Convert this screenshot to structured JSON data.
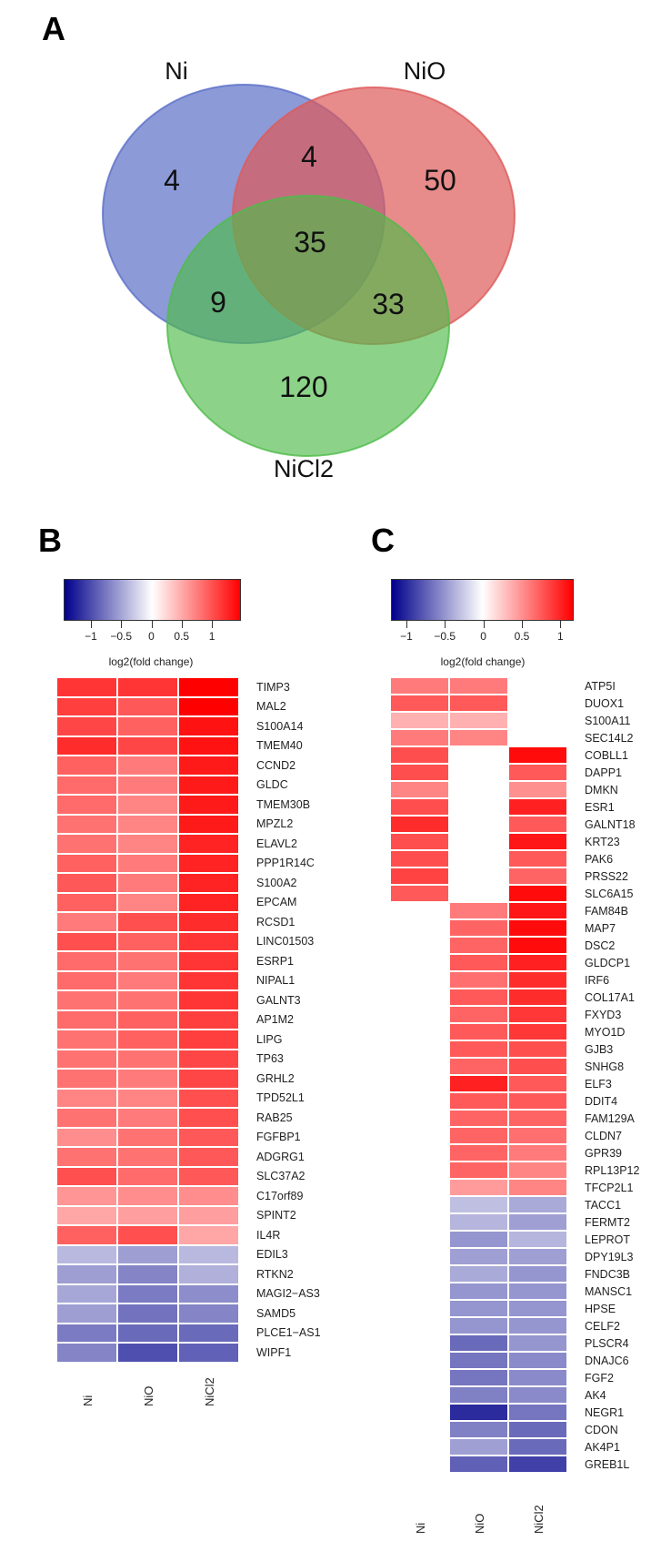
{
  "panels": {
    "A": {
      "letter": "A"
    },
    "B": {
      "letter": "B"
    },
    "C": {
      "letter": "C"
    }
  },
  "chart_data": [
    {
      "type": "venn",
      "panel": "A",
      "sets": [
        "Ni",
        "NiO",
        "NiCl2"
      ],
      "colors": {
        "Ni": "#5b6fc8",
        "NiO": "#dd5a5a",
        "NiCl2": "#4fbc4a"
      },
      "regions": {
        "Ni_only": 4,
        "NiO_only": 50,
        "NiCl2_only": 120,
        "Ni_NiO": 4,
        "Ni_NiCl2": 9,
        "NiO_NiCl2": 33,
        "Ni_NiO_NiCl2": 35
      }
    },
    {
      "type": "heatmap",
      "panel": "B",
      "colorbar": {
        "title": "log2(fold change)",
        "ticks": [
          "−1",
          "−0.5",
          "0",
          "0.5",
          "1"
        ],
        "range": [
          -1.45,
          1.45
        ],
        "low_color": "#00008b",
        "mid_color": "#ffffff",
        "high_color": "#ff0000"
      },
      "columns": [
        "Ni",
        "NiO",
        "NiCl2"
      ],
      "rows": [
        "TIMP3",
        "MAL2",
        "S100A14",
        "TMEM40",
        "CCND2",
        "GLDC",
        "TMEM30B",
        "MPZL2",
        "ELAVL2",
        "PPP1R14C",
        "S100A2",
        "EPCAM",
        "RCSD1",
        "LINC01503",
        "ESRP1",
        "NIPAL1",
        "GALNT3",
        "AP1M2",
        "LIPG",
        "TP63",
        "GRHL2",
        "TPD52L1",
        "RAB25",
        "FGFBP1",
        "ADGRG1",
        "SLC37A2",
        "C17orf89",
        "SPINT2",
        "IL4R",
        "EDIL3",
        "RTKN2",
        "MAGI2−AS3",
        "SAMD5",
        "PLCE1−AS1",
        "WIPF1"
      ],
      "values": [
        [
          1.15,
          1.15,
          1.45
        ],
        [
          1.1,
          0.95,
          1.45
        ],
        [
          1.05,
          0.9,
          1.35
        ],
        [
          1.2,
          1.05,
          1.35
        ],
        [
          0.9,
          0.75,
          1.3
        ],
        [
          0.85,
          0.75,
          1.3
        ],
        [
          0.85,
          0.7,
          1.3
        ],
        [
          0.8,
          0.7,
          1.3
        ],
        [
          0.8,
          0.7,
          1.25
        ],
        [
          0.9,
          0.75,
          1.25
        ],
        [
          0.95,
          0.75,
          1.25
        ],
        [
          0.9,
          0.7,
          1.25
        ],
        [
          0.75,
          1.0,
          1.2
        ],
        [
          1.0,
          0.9,
          1.15
        ],
        [
          0.85,
          0.8,
          1.15
        ],
        [
          0.85,
          0.75,
          1.15
        ],
        [
          0.8,
          0.8,
          1.15
        ],
        [
          0.85,
          0.9,
          1.1
        ],
        [
          0.8,
          0.9,
          1.1
        ],
        [
          0.8,
          0.8,
          1.05
        ],
        [
          0.8,
          0.75,
          1.05
        ],
        [
          0.7,
          0.7,
          1.0
        ],
        [
          0.8,
          0.75,
          1.0
        ],
        [
          0.65,
          0.8,
          0.95
        ],
        [
          0.8,
          0.8,
          0.95
        ],
        [
          1.0,
          0.85,
          0.95
        ],
        [
          0.6,
          0.65,
          0.65
        ],
        [
          0.5,
          0.55,
          0.55
        ],
        [
          0.9,
          1.0,
          0.5
        ],
        [
          -0.4,
          -0.55,
          -0.4
        ],
        [
          -0.55,
          -0.7,
          -0.45
        ],
        [
          -0.5,
          -0.75,
          -0.65
        ],
        [
          -0.55,
          -0.8,
          -0.7
        ],
        [
          -0.75,
          -0.85,
          -0.85
        ],
        [
          -0.7,
          -1.0,
          -0.9
        ]
      ]
    },
    {
      "type": "heatmap",
      "panel": "C",
      "colorbar": {
        "title": "log2(fold change)",
        "ticks": [
          "−1",
          "−0.5",
          "0",
          "0.5",
          "1"
        ],
        "range": [
          -1.2,
          1.15
        ],
        "low_color": "#00008b",
        "mid_color": "#ffffff",
        "high_color": "#ff0000"
      },
      "columns": [
        "Ni",
        "NiO",
        "NiCl2"
      ],
      "rows": [
        "ATP5I",
        "DUOX1",
        "S100A11",
        "SEC14L2",
        "COBLL1",
        "DAPP1",
        "DMKN",
        "ESR1",
        "GALNT18",
        "KRT23",
        "PAK6",
        "PRSS22",
        "SLC6A15",
        "FAM84B",
        "MAP7",
        "DSC2",
        "GLDCP1",
        "IRF6",
        "COL17A1",
        "FXYD3",
        "MYO1D",
        "GJB3",
        "SNHG8",
        "ELF3",
        "DDIT4",
        "FAM129A",
        "CLDN7",
        "GPR39",
        "RPL13P12",
        "TFCP2L1",
        "TACC1",
        "FERMT2",
        "LEPROT",
        "DPY19L3",
        "FNDC3B",
        "MANSC1",
        "HPSE",
        "CELF2",
        "PLSCR4",
        "DNAJC6",
        "FGF2",
        "AK4",
        "NEGR1",
        "CDON",
        "AK4P1",
        "GREB1L"
      ],
      "values": [
        [
          0.6,
          0.6,
          null
        ],
        [
          0.75,
          0.75,
          null
        ],
        [
          0.35,
          0.35,
          null
        ],
        [
          0.6,
          0.55,
          null
        ],
        [
          0.8,
          null,
          1.1
        ],
        [
          0.8,
          null,
          0.75
        ],
        [
          0.55,
          null,
          0.5
        ],
        [
          0.8,
          null,
          1.0
        ],
        [
          0.95,
          null,
          0.75
        ],
        [
          0.8,
          null,
          1.05
        ],
        [
          0.8,
          null,
          0.75
        ],
        [
          0.85,
          null,
          0.7
        ],
        [
          0.75,
          null,
          1.1
        ],
        [
          null,
          0.6,
          1.05
        ],
        [
          null,
          0.7,
          1.1
        ],
        [
          null,
          0.7,
          1.1
        ],
        [
          null,
          0.75,
          1.0
        ],
        [
          null,
          0.65,
          0.95
        ],
        [
          null,
          0.75,
          0.95
        ],
        [
          null,
          0.7,
          0.9
        ],
        [
          null,
          0.75,
          0.9
        ],
        [
          null,
          0.75,
          0.8
        ],
        [
          null,
          0.7,
          0.8
        ],
        [
          null,
          1.0,
          0.75
        ],
        [
          null,
          0.75,
          0.75
        ],
        [
          null,
          0.7,
          0.7
        ],
        [
          null,
          0.7,
          0.65
        ],
        [
          null,
          0.7,
          0.6
        ],
        [
          null,
          0.7,
          0.55
        ],
        [
          null,
          0.45,
          0.55
        ],
        [
          null,
          -0.3,
          -0.4
        ],
        [
          null,
          -0.35,
          -0.45
        ],
        [
          null,
          -0.5,
          -0.35
        ],
        [
          null,
          -0.45,
          -0.45
        ],
        [
          null,
          -0.4,
          -0.5
        ],
        [
          null,
          -0.5,
          -0.5
        ],
        [
          null,
          -0.5,
          -0.5
        ],
        [
          null,
          -0.5,
          -0.5
        ],
        [
          null,
          -0.7,
          -0.5
        ],
        [
          null,
          -0.65,
          -0.55
        ],
        [
          null,
          -0.65,
          -0.55
        ],
        [
          null,
          -0.6,
          -0.55
        ],
        [
          null,
          -1.0,
          -0.65
        ],
        [
          null,
          -0.6,
          -0.7
        ],
        [
          null,
          -0.45,
          -0.7
        ],
        [
          null,
          -0.75,
          -0.9
        ]
      ]
    }
  ]
}
